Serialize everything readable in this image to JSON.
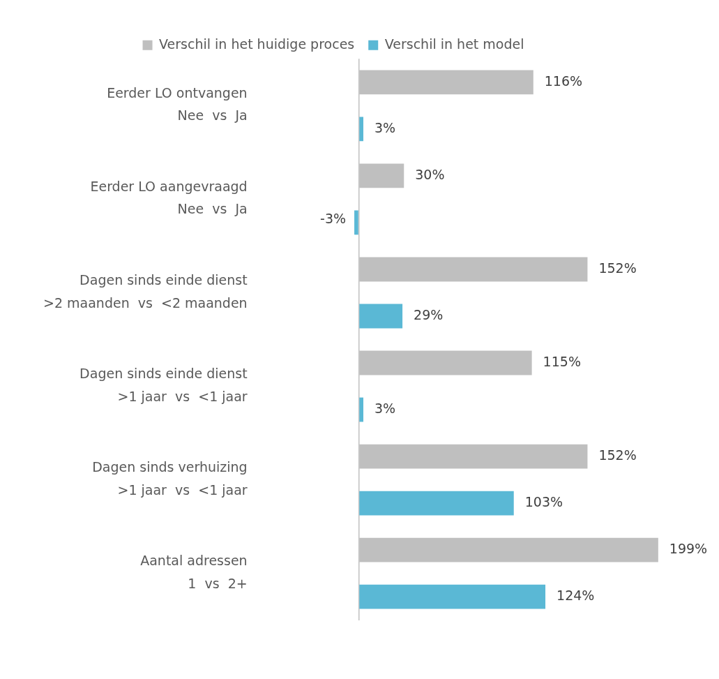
{
  "chart_data": {
    "type": "bar",
    "orientation": "horizontal",
    "legend": "top",
    "tick_labels": "y",
    "grid": false,
    "categories": [
      "Eerder LO ontvangen\nNee  vs  Ja",
      "Eerder LO aangevraagd\nNee  vs  Ja",
      "Dagen sinds einde dienst\n>2 maanden  vs  <2 maanden",
      "Dagen sinds einde dienst\n>1 jaar  vs  <1 jaar",
      "Dagen sinds verhuizing\n>1 jaar  vs  <1 jaar",
      "Aantal adressen\n1  vs  2+"
    ],
    "series": [
      {
        "name": "Verschil in het huidige proces",
        "color": "#bfbfbf",
        "values": [
          116,
          30,
          152,
          115,
          152,
          199
        ],
        "value_labels": [
          "116%",
          "30%",
          "152%",
          "115%",
          "152%",
          "199%"
        ]
      },
      {
        "name": "Verschil in het model",
        "color": "#5ab8d5",
        "values": [
          3,
          -3,
          29,
          3,
          103,
          124
        ],
        "value_labels": [
          "3%",
          "-3%",
          "29%",
          "3%",
          "103%",
          "124%"
        ]
      }
    ]
  }
}
